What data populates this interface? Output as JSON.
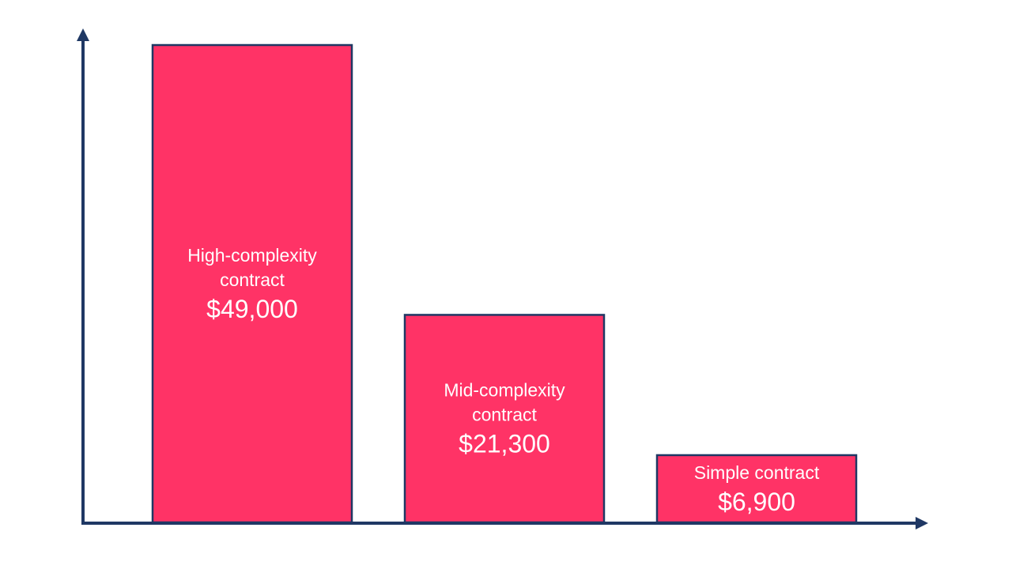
{
  "chart_data": {
    "type": "bar",
    "title": "",
    "xlabel": "",
    "ylabel": "",
    "categories": [
      "High-complexity contract",
      "Mid-complexity contract",
      "Simple contract"
    ],
    "category_label_lines": [
      [
        "High-complexity",
        "contract"
      ],
      [
        "Mid-complexity",
        "contract"
      ],
      [
        "Simple contract"
      ]
    ],
    "values": [
      49000,
      21300,
      6900
    ],
    "value_labels": [
      "$49,000",
      "$21,300",
      "$6,900"
    ],
    "ylim": [
      0,
      49000
    ],
    "grid": false,
    "legend": "none"
  },
  "colors": {
    "bar_fill": "#ff3366",
    "bar_stroke": "#1f3864",
    "axis": "#1f3864",
    "label_text": "#ffffff"
  }
}
